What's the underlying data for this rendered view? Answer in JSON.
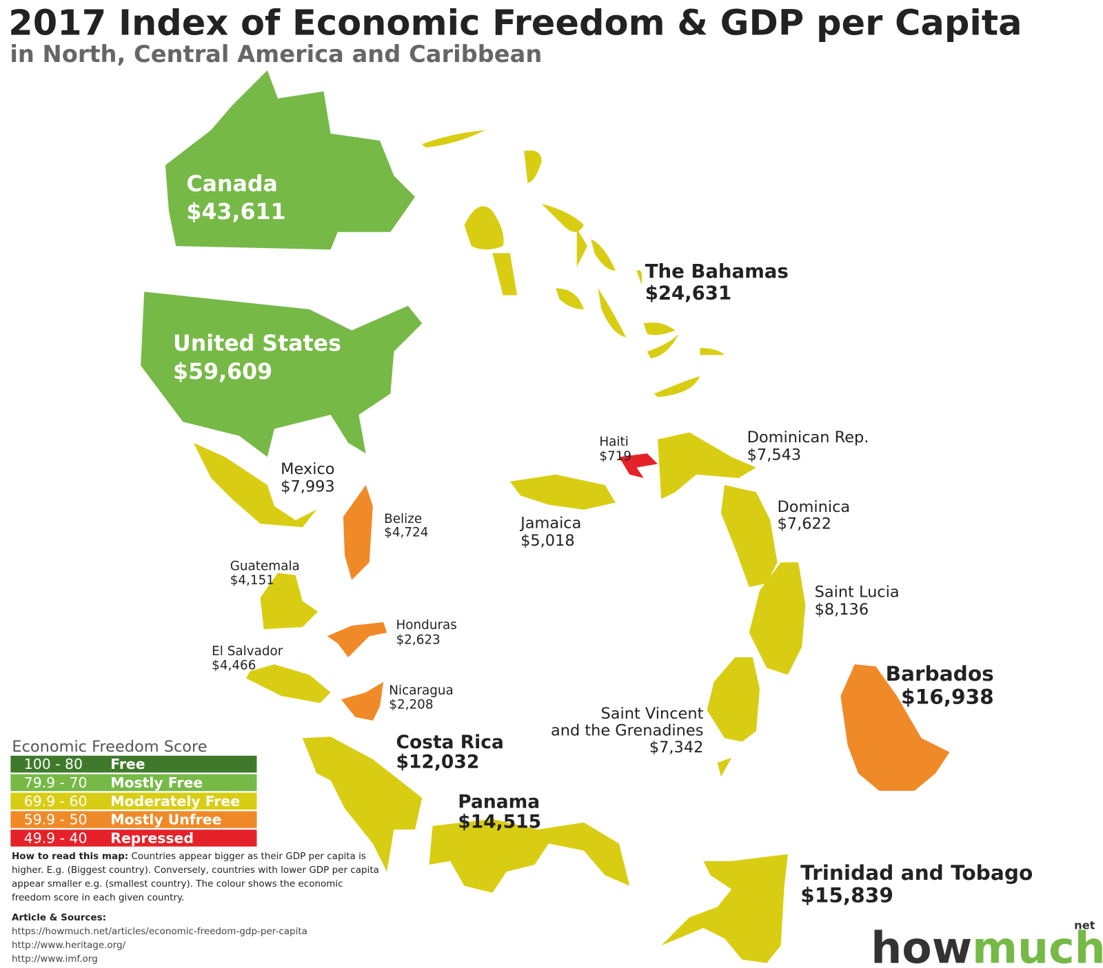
{
  "header": {
    "title": "2017 Index of Economic Freedom & GDP per Capita",
    "subtitle": "in North, Central America and Caribbean"
  },
  "countries": [
    {
      "name": "Canada",
      "gdp": "$43,611",
      "color": "#76b947"
    },
    {
      "name": "United States",
      "gdp": "$59,609",
      "color": "#76b947"
    },
    {
      "name": "The Bahamas",
      "gdp": "$24,631",
      "color": "#d9cd14"
    },
    {
      "name": "Mexico",
      "gdp": "$7,993",
      "color": "#d9cd14"
    },
    {
      "name": "Belize",
      "gdp": "$4,724",
      "color": "#f08a28"
    },
    {
      "name": "Guatemala",
      "gdp": "$4,151",
      "color": "#d9cd14"
    },
    {
      "name": "Honduras",
      "gdp": "$2,623",
      "color": "#f08a28"
    },
    {
      "name": "El Salvador",
      "gdp": "$4,466",
      "color": "#d9cd14"
    },
    {
      "name": "Nicaragua",
      "gdp": "$2,208",
      "color": "#f08a28"
    },
    {
      "name": "Costa Rica",
      "gdp": "$12,032",
      "color": "#d9cd14"
    },
    {
      "name": "Panama",
      "gdp": "$14,515",
      "color": "#d9cd14"
    },
    {
      "name": "Jamaica",
      "gdp": "$5,018",
      "color": "#d9cd14"
    },
    {
      "name": "Haiti",
      "gdp": "$719",
      "color": "#e52229"
    },
    {
      "name": "Dominican Rep.",
      "gdp": "$7,543",
      "color": "#d9cd14"
    },
    {
      "name": "Dominica",
      "gdp": "$7,622",
      "color": "#d9cd14"
    },
    {
      "name": "Saint Lucia",
      "gdp": "$8,136",
      "color": "#d9cd14"
    },
    {
      "name": [
        "Saint Vincent",
        "and the Grenadines"
      ],
      "gdp": "$7,342",
      "color": "#d9cd14"
    },
    {
      "name": "Barbados",
      "gdp": "$16,938",
      "color": "#f08a28"
    },
    {
      "name": "Trinidad and Tobago",
      "gdp": "$15,839",
      "color": "#d9cd14"
    }
  ],
  "legend": {
    "title": "Economic Freedom Score",
    "items": [
      {
        "range": "100 - 80",
        "label": "Free",
        "color": "#3f7a2c"
      },
      {
        "range": "79.9 - 70",
        "label": "Mostly Free",
        "color": "#76b947"
      },
      {
        "range": "69.9 - 60",
        "label": "Moderately Free",
        "color": "#d9cd14"
      },
      {
        "range": "59.9 - 50",
        "label": "Mostly Unfree",
        "color": "#f08a28"
      },
      {
        "range": "49.9 - 40",
        "label": "Repressed",
        "color": "#e52229"
      }
    ]
  },
  "note": {
    "heading": "How to read this map:",
    "text": "Countries appear bigger as their GDP per capita is higher. E.g. (Biggest country). Conversely, countries with lower GDP per capita appear smaller e.g. (smallest country). The colour shows the economic freedom score in each given country."
  },
  "sources": {
    "heading": "Article & Sources:",
    "links": [
      "https://howmuch.net/articles/economic-freedom-gdp-per-capita",
      "http://www.heritage.org/",
      "http://www.imf.org"
    ]
  },
  "logo": {
    "first": "how",
    "second": "much",
    "suffix": "net"
  }
}
